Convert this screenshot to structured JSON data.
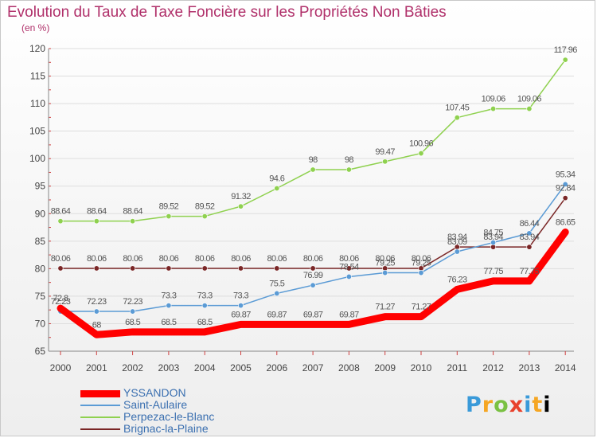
{
  "title": "Evolution du Taux de Taxe Foncière sur les Propriétés Non Bâties",
  "unit_label": "(en %)",
  "logo_text": "Proxiti",
  "chart_data": {
    "type": "line",
    "x": [
      "2000",
      "2001",
      "2002",
      "2003",
      "2004",
      "2005",
      "2006",
      "2007",
      "2008",
      "2009",
      "2010",
      "2011",
      "2012",
      "2013",
      "2014"
    ],
    "ylim": [
      65,
      120
    ],
    "yticks": [
      65,
      70,
      75,
      80,
      85,
      90,
      95,
      100,
      105,
      110,
      115,
      120
    ],
    "grid": "horizontal",
    "legend_placement": "bottom-left",
    "series": [
      {
        "name": "YSSANDON",
        "color": "#ff0000",
        "values": [
          72.8,
          68,
          68.5,
          68.5,
          68.5,
          69.87,
          69.87,
          69.87,
          69.87,
          71.27,
          71.27,
          76.23,
          77.75,
          77.75,
          86.65
        ],
        "labels": [
          "72.8",
          "68",
          "68.5",
          "68.5",
          "68.5",
          "69.87",
          "69.87",
          "69.87",
          "69.87",
          "71.27",
          "71.27",
          "76.23",
          "77.75",
          "77.75",
          "86.65"
        ]
      },
      {
        "name": "Saint-Aulaire",
        "color": "#5b9bd5",
        "values": [
          72.23,
          72.23,
          72.23,
          73.3,
          73.3,
          73.3,
          75.5,
          76.99,
          78.54,
          79.25,
          79.25,
          83.09,
          84.75,
          86.44,
          95.34
        ],
        "labels": [
          "72.23",
          "72.23",
          "72.23",
          "73.3",
          "73.3",
          "73.3",
          "75.5",
          "76.99",
          "78.54",
          "79.25",
          "79.25",
          "83.09",
          "84.75",
          "86.44",
          "95.34"
        ]
      },
      {
        "name": "Perpezac-le-Blanc",
        "color": "#8fd14f",
        "values": [
          88.64,
          88.64,
          88.64,
          89.52,
          89.52,
          91.32,
          94.6,
          98,
          98,
          99.47,
          100.96,
          107.45,
          109.06,
          109.06,
          117.96
        ],
        "labels": [
          "88.64",
          "88.64",
          "88.64",
          "89.52",
          "89.52",
          "91.32",
          "94.6",
          "98",
          "98",
          "99.47",
          "100.96",
          "107.45",
          "109.06",
          "109.06",
          "117.96"
        ]
      },
      {
        "name": "Brignac-la-Plaine",
        "color": "#7a2626",
        "values": [
          80.06,
          80.06,
          80.06,
          80.06,
          80.06,
          80.06,
          80.06,
          80.06,
          80.06,
          80.06,
          80.06,
          83.94,
          83.94,
          83.94,
          92.84
        ],
        "labels": [
          "80.06",
          "80.06",
          "80.06",
          "80.06",
          "80.06",
          "80.06",
          "80.06",
          "80.06",
          "80.06",
          "80.06",
          "80.06",
          "83.94",
          "83.94",
          "83.94",
          "92.84"
        ]
      }
    ]
  }
}
